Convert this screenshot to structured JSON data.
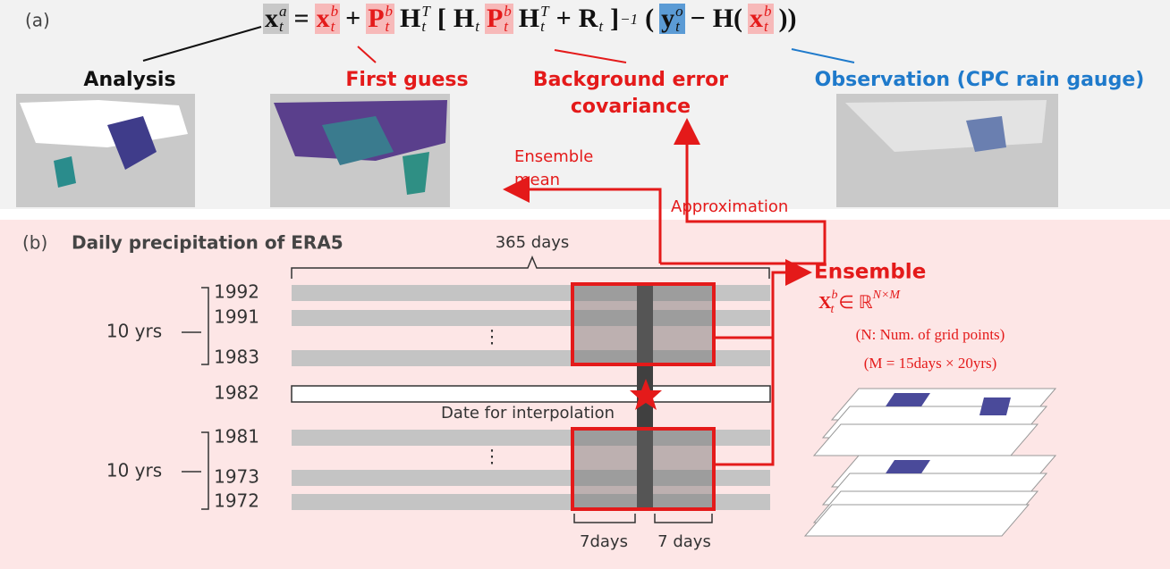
{
  "panel_a": {
    "label": "(a)",
    "equation": [
      {
        "base": "x",
        "sup": "a",
        "sub": "t",
        "highlight": "#c8c8c8",
        "color": "#111111"
      },
      {
        "base": "="
      },
      {
        "base": "x",
        "sup": "b",
        "sub": "t",
        "highlight": "#f7b9b9",
        "color": "#e41a1a"
      },
      {
        "base": "+"
      },
      {
        "base": "P",
        "sup": "b",
        "sub": "t",
        "highlight": "#f7b9b9",
        "color": "#e41a1a"
      },
      {
        "base": "H",
        "sup": "T",
        "sub": "t"
      },
      {
        "base": "["
      },
      {
        "base": "H",
        "sub": "t"
      },
      {
        "base": "P",
        "sup": "b",
        "sub": "t",
        "highlight": "#f7b9b9",
        "color": "#e41a1a"
      },
      {
        "base": "H",
        "sup": "T",
        "sub": "t"
      },
      {
        "base": "+"
      },
      {
        "base": "R",
        "sub": "t"
      },
      {
        "base": "]",
        "sup": "−1"
      },
      {
        "base": "("
      },
      {
        "base": "y",
        "sup": "o",
        "sub": "t",
        "highlight": "#5b9bd5",
        "color": "#111111"
      },
      {
        "base": "−"
      },
      {
        "base": "H("
      },
      {
        "base": "x",
        "sup": "b",
        "sub": "t",
        "highlight": "#f7b9b9",
        "color": "#e41a1a"
      },
      {
        "base": "))"
      }
    ],
    "analysis": "Analysis",
    "first_guess": "First guess",
    "background_error_covariance": [
      "Background error",
      "covariance"
    ],
    "observation": "Observation (CPC rain gauge)",
    "ensemble_mean": [
      "Ensemble",
      "mean"
    ],
    "approximation": "Approximation"
  },
  "panel_b": {
    "label": "(b)",
    "title": "Daily precipitation of ERA5",
    "span_label": "365 days",
    "years": [
      "1992",
      "1991",
      "⋮",
      "1983",
      "1982",
      "1981",
      "⋮",
      "1973",
      "1972"
    ],
    "group_labels": [
      "10 yrs",
      "10 yrs"
    ],
    "date_label": "Date for interpolation",
    "ensemble": {
      "title": "Ensemble",
      "formula": {
        "base": "X",
        "sup": "b",
        "sub": "t",
        "rest": " ∈ ℝ",
        "rest_sup": "N×M"
      },
      "notes": [
        "(N: Num. of grid points)",
        "(M = 15days × 20yrs)"
      ]
    },
    "window_labels": [
      "7days",
      "7 days"
    ]
  }
}
